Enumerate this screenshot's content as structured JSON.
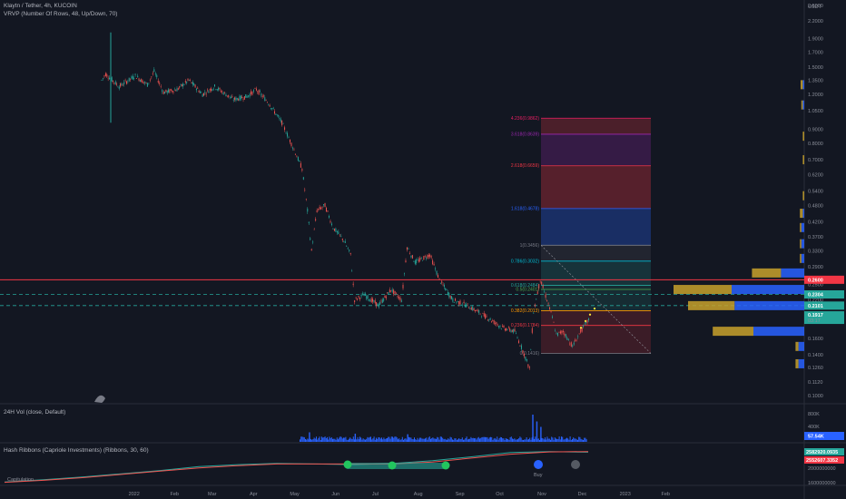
{
  "header": {
    "title": "Klaytn / Tether, 4h, KUCOIN",
    "indicator_vrvp": "VRVP (Number Of Rows, 48, Up/Down, 70)"
  },
  "panes": {
    "vol_title": "24H Vol (close, Default)",
    "hash_title": "Hash Ribbons (Capriole Investments) (Ribbons, 30, 60)",
    "buy_label": "Buy",
    "left_overlay": "Capitulation"
  },
  "colors": {
    "background": "#131722",
    "up": "#26a69a",
    "down": "#ef5350",
    "volume": "#2962ff",
    "vrvp_up": "#c8a12c",
    "vrvp_down": "#2962ff",
    "resistance": "#f23645",
    "support": "#26a69a"
  },
  "chart_data": [
    {
      "type": "candlestick",
      "title": "Klaytn / Tether, 4h, KUCOIN",
      "y_unit": "USDT",
      "y_scale": "log",
      "ylim": [
        0.1,
        2.5
      ],
      "y_ticks": [
        "2.5000",
        "2.2000",
        "1.9000",
        "1.7000",
        "1.5000",
        "1.3500",
        "1.2000",
        "1.0500",
        "0.9000",
        "0.8000",
        "0.7000",
        "0.6200",
        "0.5400",
        "0.4800",
        "0.4200",
        "0.3700",
        "0.3300",
        "0.2900",
        "0.2500",
        "0.2200",
        "0.1900",
        "0.1600",
        "0.1400",
        "0.1260",
        "0.1120",
        "0.1000"
      ],
      "x_ticks": [
        "2022",
        "Feb",
        "Mar",
        "Apr",
        "May",
        "Jun",
        "Jul",
        "Aug",
        "Sep",
        "Oct",
        "Nov",
        "Dec",
        "2023",
        "Feb"
      ],
      "price_path": [
        [
          "2021-12-07",
          1.35
        ],
        [
          "2021-12-10",
          1.42
        ],
        [
          "2021-12-20",
          1.28
        ],
        [
          "2022-01-01",
          1.4
        ],
        [
          "2022-01-10",
          1.3
        ],
        [
          "2022-01-15",
          1.45
        ],
        [
          "2022-01-22",
          1.22
        ],
        [
          "2022-02-01",
          1.25
        ],
        [
          "2022-02-10",
          1.35
        ],
        [
          "2022-02-20",
          1.2
        ],
        [
          "2022-03-01",
          1.28
        ],
        [
          "2022-03-15",
          1.15
        ],
        [
          "2022-03-25",
          1.18
        ],
        [
          "2022-04-01",
          1.25
        ],
        [
          "2022-04-10",
          1.12
        ],
        [
          "2022-04-20",
          0.95
        ],
        [
          "2022-04-28",
          0.78
        ],
        [
          "2022-05-05",
          0.65
        ],
        [
          "2022-05-09",
          0.46
        ],
        [
          "2022-05-12",
          0.33
        ],
        [
          "2022-05-16",
          0.46
        ],
        [
          "2022-05-22",
          0.48
        ],
        [
          "2022-05-28",
          0.4
        ],
        [
          "2022-06-05",
          0.36
        ],
        [
          "2022-06-10",
          0.32
        ],
        [
          "2022-06-13",
          0.22
        ],
        [
          "2022-06-20",
          0.23
        ],
        [
          "2022-07-01",
          0.21
        ],
        [
          "2022-07-10",
          0.24
        ],
        [
          "2022-07-18",
          0.22
        ],
        [
          "2022-07-22",
          0.34
        ],
        [
          "2022-07-28",
          0.3
        ],
        [
          "2022-08-08",
          0.32
        ],
        [
          "2022-08-15",
          0.26
        ],
        [
          "2022-08-25",
          0.22
        ],
        [
          "2022-09-05",
          0.21
        ],
        [
          "2022-09-20",
          0.19
        ],
        [
          "2022-10-01",
          0.175
        ],
        [
          "2022-10-10",
          0.17
        ],
        [
          "2022-10-16",
          0.145
        ],
        [
          "2022-10-21",
          0.125
        ],
        [
          "2022-10-24",
          0.2
        ],
        [
          "2022-10-29",
          0.26
        ],
        [
          "2022-11-03",
          0.22
        ],
        [
          "2022-11-07",
          0.19
        ],
        [
          "2022-11-10",
          0.165
        ],
        [
          "2022-11-15",
          0.17
        ],
        [
          "2022-11-22",
          0.15
        ],
        [
          "2022-11-28",
          0.17
        ],
        [
          "2022-12-05",
          0.19
        ]
      ],
      "fibonacci": [
        {
          "level": "0",
          "price": 0.1416,
          "label": "0(0.1416)"
        },
        {
          "level": "0.236",
          "price": 0.1784,
          "label": "0.236(0.1784)"
        },
        {
          "level": "0.382",
          "price": 0.2013,
          "label": "0.382(0.2013)"
        },
        {
          "level": "0.5",
          "price": 0.2401,
          "label": "0.5(0.2401)"
        },
        {
          "level": "0.618",
          "price": 0.2484,
          "label": "0.618(0.2484)"
        },
        {
          "level": "0.786",
          "price": 0.3032,
          "label": "0.786(0.3032)"
        },
        {
          "level": "1",
          "price": 0.3456,
          "label": "1(0.3456)"
        },
        {
          "level": "1.618",
          "price": 0.4678,
          "label": "1.618(0.4678)"
        },
        {
          "level": "2.618",
          "price": 0.6659,
          "label": "2.618(0.6659)"
        },
        {
          "level": "3.618",
          "price": 0.8639,
          "label": "3.618(0.8639)"
        },
        {
          "level": "4.236",
          "price": 0.9862,
          "label": "4.236(0.9862)"
        }
      ],
      "horizontal_lines": [
        {
          "price": 0.26,
          "style": "solid",
          "color": "#f23645",
          "tag": "0.2600"
        },
        {
          "price": 0.2304,
          "style": "dashed",
          "color": "#26a69a",
          "tag": "0.2304"
        },
        {
          "price": 0.2101,
          "style": "dashed",
          "color": "#26a69a",
          "tag": "0.2101"
        }
      ],
      "last_price": {
        "value": "0.1917",
        "countdown": "03:17"
      },
      "vrvp": [
        {
          "price": 0.13,
          "up": 0.02,
          "down": 0.04
        },
        {
          "price": 0.15,
          "up": 0.02,
          "down": 0.04
        },
        {
          "price": 0.17,
          "up": 0.28,
          "down": 0.35
        },
        {
          "price": 0.21,
          "up": 0.32,
          "down": 0.48
        },
        {
          "price": 0.24,
          "up": 0.4,
          "down": 0.5
        },
        {
          "price": 0.275,
          "up": 0.2,
          "down": 0.16
        },
        {
          "price": 0.31,
          "up": 0.01,
          "down": 0.02
        },
        {
          "price": 0.35,
          "up": 0.01,
          "down": 0.02
        },
        {
          "price": 0.4,
          "up": 0.01,
          "down": 0.02
        },
        {
          "price": 0.45,
          "up": 0.02,
          "down": 0.01
        },
        {
          "price": 0.52,
          "up": 0.01,
          "down": 0.0
        },
        {
          "price": 0.7,
          "up": 0.01,
          "down": 0.0
        },
        {
          "price": 0.85,
          "up": 0.01,
          "down": 0.0
        },
        {
          "price": 1.1,
          "up": 0.01,
          "down": 0.01
        },
        {
          "price": 1.3,
          "up": 0.015,
          "down": 0.01
        }
      ]
    },
    {
      "type": "bar",
      "title": "24H Vol (close, Default)",
      "y_ticks": [
        "800K",
        "400K"
      ],
      "last_value_tag": "57.54K",
      "spikes": [
        [
          "2022-10-23",
          1.0
        ],
        [
          "2022-10-26",
          0.75
        ],
        [
          "2022-10-29",
          0.55
        ],
        [
          "2022-05-10",
          0.35
        ],
        [
          "2022-06-13",
          0.3
        ],
        [
          "2022-07-22",
          0.28
        ]
      ]
    },
    {
      "type": "line",
      "title": "Hash Ribbons (Capriole Investments) (Ribbons, 30, 60)",
      "y_ticks": [
        "2000000000",
        "1600000000"
      ],
      "tags": [
        "2582920.0935",
        "2552607.3352"
      ],
      "series": [
        {
          "name": "fast",
          "color": "#26a69a",
          "values": [
            0.05,
            0.12,
            0.2,
            0.3,
            0.4,
            0.52,
            0.58,
            0.62,
            0.6,
            0.58,
            0.62,
            0.7,
            0.82,
            0.95,
            0.98,
            0.96
          ]
        },
        {
          "name": "slow",
          "color": "#ef5350",
          "values": [
            0.04,
            0.1,
            0.18,
            0.28,
            0.38,
            0.48,
            0.55,
            0.6,
            0.6,
            0.6,
            0.6,
            0.66,
            0.78,
            0.9,
            0.97,
            0.98
          ]
        }
      ]
    }
  ]
}
